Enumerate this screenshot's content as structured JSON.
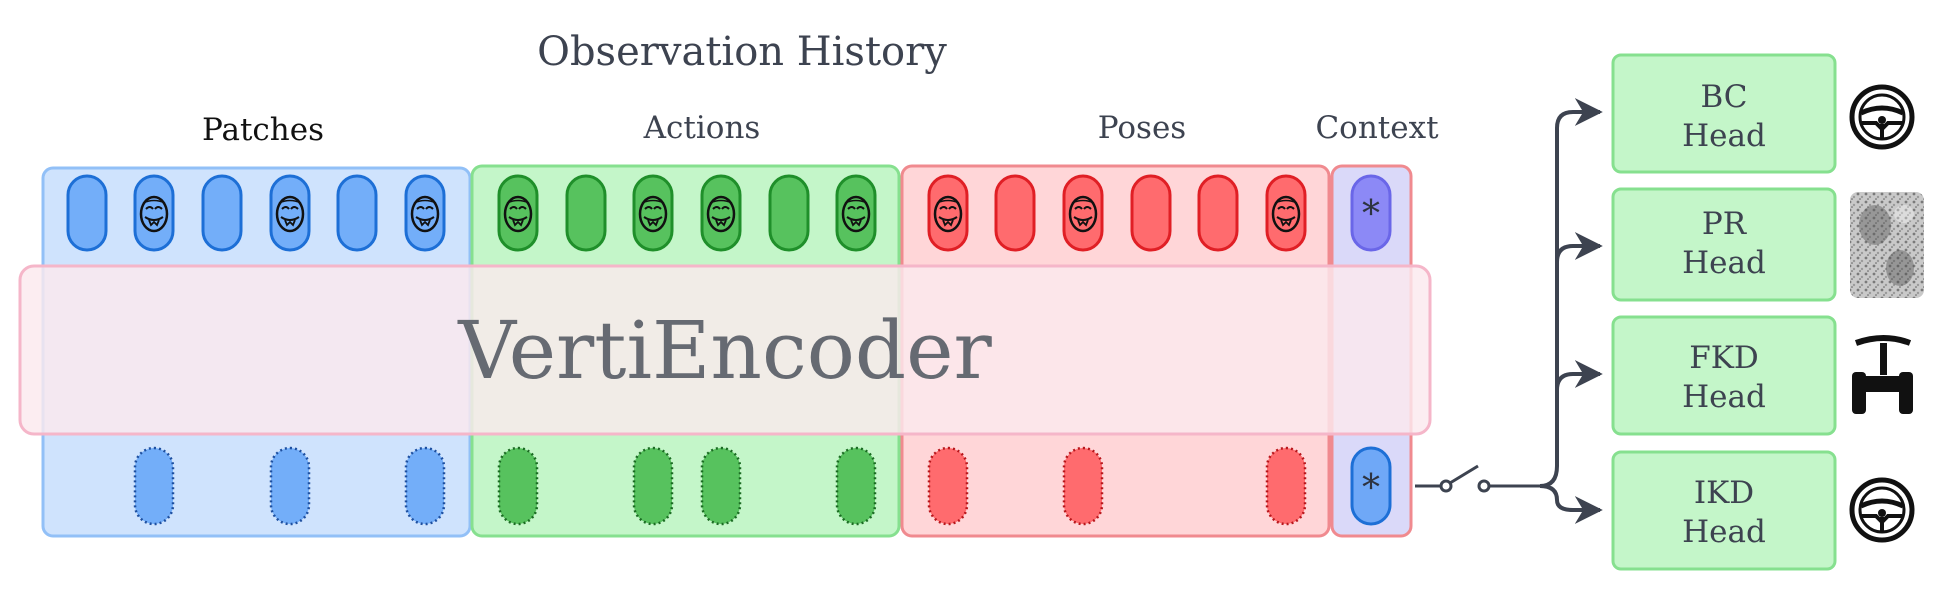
{
  "diagram": {
    "title": "Observation History",
    "groups": {
      "patches": "Patches",
      "actions": "Actions",
      "poses": "Poses",
      "context": "Context"
    },
    "encoder_label": "VertiEncoder",
    "context_token_symbol": "*",
    "heads": [
      {
        "line1": "BC",
        "line2": "Head",
        "icon": "steering-wheel-icon"
      },
      {
        "line1": "PR",
        "line2": "Head",
        "icon": "terrain-patch-image"
      },
      {
        "line1": "FKD",
        "line2": "Head",
        "icon": "vehicle-icon"
      },
      {
        "line1": "IKD",
        "line2": "Head",
        "icon": "steering-wheel-icon"
      }
    ],
    "colors": {
      "patches_fill": "#cfe3fd",
      "patches_border": "#92c0f7",
      "patch_token": "#73aef9",
      "patch_token_border": "#1d6fd6",
      "actions_fill": "#c4f6c9",
      "actions_border": "#86e08f",
      "action_token": "#57c25e",
      "action_token_border": "#1f8f2a",
      "poses_fill": "#ffd6d8",
      "poses_border": "#f08a8f",
      "pose_token": "#ff6b6e",
      "pose_token_border": "#e01f25",
      "context_fill": "#dad9f9",
      "context_token": "#8c89f6",
      "encoder_fill": "#f9e9ee",
      "encoder_border": "#f5b6c9",
      "head_fill": "#c4f6c9",
      "head_border": "#86e08f",
      "arrow": "#3d4350"
    }
  }
}
